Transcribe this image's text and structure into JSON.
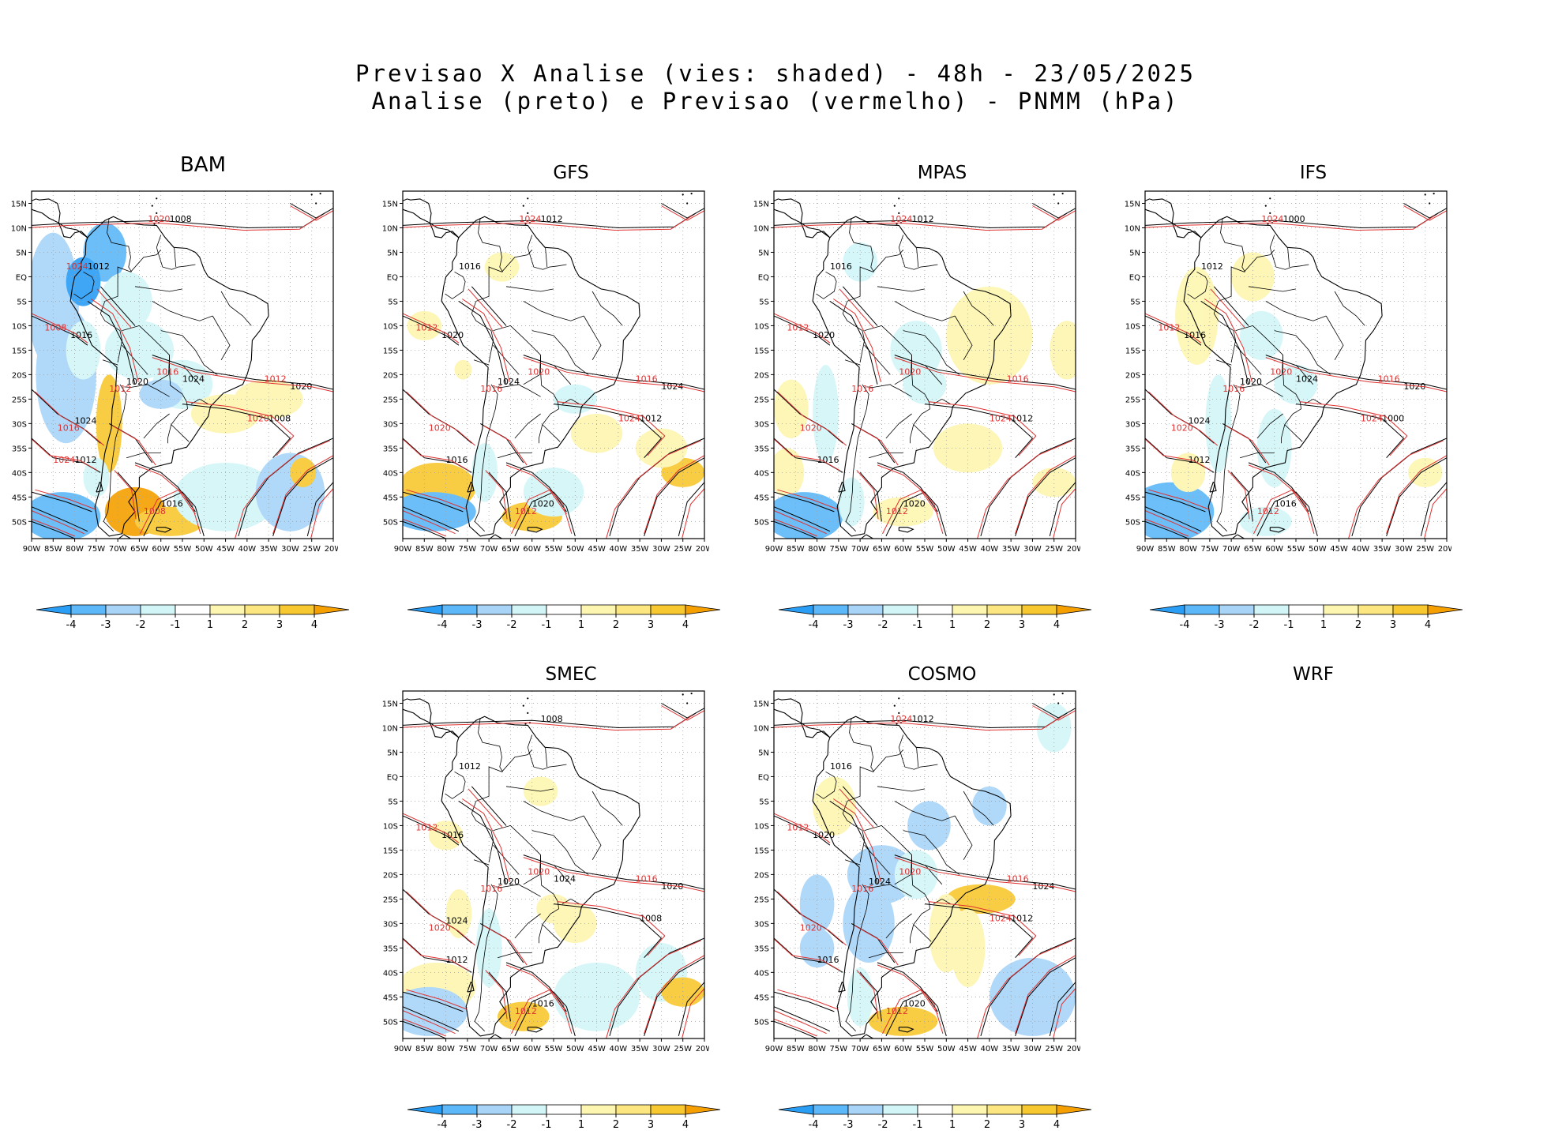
{
  "title": {
    "line1": "Previsao X Analise (vies: shaded) - 48h - 23/05/2025",
    "line2": "Analise (preto) e Previsao (vermelho) - PNMM (hPa)"
  },
  "colors": {
    "analysis_contour": "#000000",
    "forecast_contour": "#e03030",
    "bias_neg_4": "#2a9df4",
    "bias_neg_3": "#5cb8f8",
    "bias_neg_2": "#a8d4f8",
    "bias_neg_1": "#d2f6f8",
    "bias_0": "#ffffff",
    "bias_pos_1": "#fdf6b0",
    "bias_pos_2": "#fbe680",
    "bias_pos_3": "#f8c830",
    "bias_pos_4": "#f5a000"
  },
  "axes": {
    "lat_labels": [
      "15N",
      "10N",
      "5N",
      "EQ",
      "5S",
      "10S",
      "15S",
      "20S",
      "25S",
      "30S",
      "35S",
      "40S",
      "45S",
      "50S"
    ],
    "lon_labels": [
      "90W",
      "85W",
      "80W",
      "75W",
      "70W",
      "65W",
      "60W",
      "55W",
      "50W",
      "45W",
      "40W",
      "35W",
      "30W",
      "25W",
      "20W"
    ]
  },
  "colorbar": {
    "labels": [
      "-4",
      "-3",
      "-2",
      "-1",
      "1",
      "2",
      "3",
      "4"
    ]
  },
  "panels": [
    {
      "model": "BAM",
      "has_map": true,
      "contour_labels": {
        "black": [
          "1008",
          "1012",
          "1016",
          "1020",
          "1024"
        ],
        "red": [
          "1008",
          "1012",
          "1016",
          "1020",
          "1024"
        ]
      }
    },
    {
      "model": "GFS",
      "has_map": true,
      "contour_labels": {
        "black": [
          "1012",
          "1016",
          "1020",
          "1024"
        ],
        "red": [
          "1012",
          "1016",
          "1020",
          "1024"
        ]
      }
    },
    {
      "model": "MPAS",
      "has_map": true,
      "contour_labels": {
        "black": [
          "1012",
          "1016",
          "1020"
        ],
        "red": [
          "1012",
          "1016",
          "1020",
          "1024"
        ]
      }
    },
    {
      "model": "IFS",
      "has_map": true,
      "contour_labels": {
        "black": [
          "1000",
          "1012",
          "1016",
          "1020",
          "1024"
        ],
        "red": [
          "1012",
          "1016",
          "1020",
          "1024"
        ]
      }
    },
    {
      "model": "SMEC",
      "has_map": true,
      "contour_labels": {
        "black": [
          "1008",
          "1012",
          "1016",
          "1020",
          "1024"
        ],
        "red": [
          "1012",
          "1016",
          "1020"
        ]
      }
    },
    {
      "model": "COSMO",
      "has_map": true,
      "contour_labels": {
        "black": [
          "1012",
          "1016",
          "1020",
          "1024"
        ],
        "red": [
          "1012",
          "1016",
          "1020",
          "1024"
        ]
      }
    },
    {
      "model": "WRF",
      "has_map": false
    }
  ]
}
